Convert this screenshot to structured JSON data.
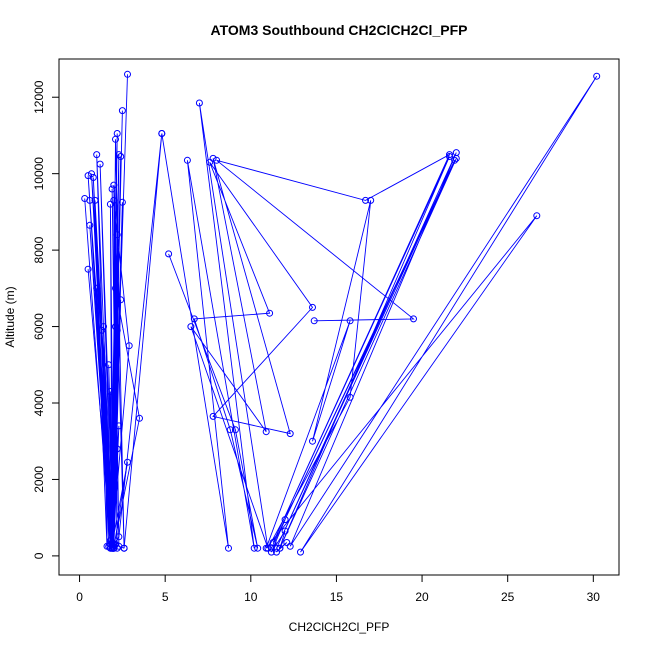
{
  "chart_data": {
    "type": "line",
    "title": "ATOM3 Southbound CH2ClCH2Cl_PFP",
    "xlabel": "CH2ClCH2Cl_PFP",
    "ylabel": "Altitude (m)",
    "xlim": [
      -1.2,
      31.5
    ],
    "ylim": [
      -500,
      13000
    ],
    "xticks": [
      0,
      5,
      10,
      15,
      20,
      25,
      30
    ],
    "xtick_labels": [
      "0",
      "5",
      "10",
      "15",
      "20",
      "25",
      "30"
    ],
    "yticks": [
      0,
      2000,
      4000,
      6000,
      8000,
      10000,
      12000
    ],
    "ytick_labels": [
      "0",
      "2000",
      "4000",
      "6000",
      "8000",
      "10000",
      "12000"
    ],
    "grid": false,
    "series_color": "#0000ff",
    "series": [
      {
        "x": [
          2.8,
          1.9,
          2.5,
          1.9,
          2.2,
          1.8,
          2.3,
          2.0,
          2.4,
          1.9,
          2.1,
          2.6,
          2.0,
          2.3,
          1.9,
          2.2,
          2.0,
          2.9,
          1.9,
          2.5,
          2.0,
          2.1,
          3.5,
          2.0,
          2.2,
          2.0,
          2.4,
          1.9,
          2.8,
          2.0,
          2.2,
          1.9,
          2.1,
          2.0,
          2.3,
          1.9,
          2.0,
          2.2,
          2.0,
          2.1,
          1.9
        ],
        "y": [
          12600,
          200,
          11650,
          300,
          11050,
          200,
          10500,
          300,
          10450,
          200,
          10900,
          200,
          9700,
          250,
          9600,
          200,
          9300,
          5500,
          300,
          9250,
          200,
          7000,
          3600,
          250,
          8400,
          200,
          6700,
          300,
          2450,
          200,
          5900,
          300,
          6000,
          250,
          3400,
          200,
          3100,
          2800,
          200,
          300,
          250
        ]
      },
      {
        "x": [
          0.3,
          1.8,
          0.6,
          1.9,
          1.0,
          1.7,
          0.8,
          1.9,
          0.5,
          2.0,
          0.7,
          1.8,
          0.9,
          2.0,
          1.2,
          1.9,
          1.8,
          2.0
        ],
        "y": [
          9350,
          200,
          9300,
          300,
          10500,
          250,
          9900,
          200,
          9950,
          300,
          10000,
          400,
          9300,
          200,
          10250,
          350,
          9200,
          200
        ]
      },
      {
        "x": [
          0.5,
          1.9,
          0.6,
          1.8,
          1.0,
          1.6,
          1.4,
          1.9,
          1.3,
          2.0,
          1.7,
          1.9,
          1.8,
          2.0
        ],
        "y": [
          7500,
          200,
          8650,
          300,
          7000,
          250,
          6000,
          200,
          5900,
          300,
          5000,
          200,
          4300,
          250
        ]
      },
      {
        "x": [
          2.6,
          4.8,
          2.3,
          2.0,
          2.6
        ],
        "y": [
          200,
          11050,
          500,
          300,
          200
        ]
      },
      {
        "x": [
          4.8,
          8.7,
          6.3,
          10.2,
          7.0,
          11.0,
          6.5,
          10.9,
          7.8,
          12.3,
          7.8,
          13.6,
          7.6,
          11.1,
          6.7,
          8.8,
          10.4,
          9.1,
          5.2
        ],
        "y": [
          11050,
          200,
          10350,
          200,
          11850,
          200,
          6000,
          3250,
          10400,
          3200,
          3650,
          6500,
          10300,
          6350,
          6200,
          3300,
          200,
          3300,
          7900
        ]
      },
      {
        "x": [
          13.7,
          19.5,
          8.0,
          16.7,
          21.6,
          11.3,
          21.6,
          11.7,
          22.0,
          11.2,
          21.9,
          11.5,
          22.0,
          12.3,
          30.2,
          12.9,
          26.7,
          10.9,
          15.8,
          13.6,
          17.0,
          15.8,
          11.0
        ],
        "y": [
          6150,
          6200,
          10350,
          9300,
          10500,
          350,
          10450,
          200,
          10400,
          200,
          10350,
          200,
          10550,
          250,
          12550,
          100,
          8900,
          200,
          6150,
          3000,
          9300,
          4150,
          200
        ]
      },
      {
        "x": [
          12.0,
          11.2,
          12.0,
          11.7,
          12.1,
          11.5
        ],
        "y": [
          950,
          100,
          650,
          200,
          350,
          100
        ]
      }
    ]
  }
}
